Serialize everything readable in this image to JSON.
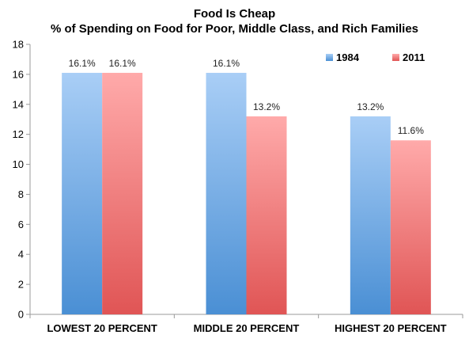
{
  "chart_data": {
    "type": "bar",
    "title": "Food Is Cheap",
    "subtitle": "% of Spending on Food for Poor, Middle Class, and Rich Families",
    "categories": [
      "LOWEST 20 PERCENT",
      "MIDDLE 20 PERCENT",
      "HIGHEST 20 PERCENT"
    ],
    "series": [
      {
        "name": "1984",
        "values": [
          16.1,
          16.1,
          13.2
        ],
        "labels": [
          "16.1%",
          "16.1%",
          "13.2%"
        ],
        "color_light": "#a9cef6",
        "color_dark": "#4a8fd4"
      },
      {
        "name": "2011",
        "values": [
          16.1,
          13.2,
          11.6
        ],
        "labels": [
          "16.1%",
          "13.2%",
          "11.6%"
        ],
        "color_light": "#ffaaaa",
        "color_dark": "#e05555"
      }
    ],
    "xlabel": "",
    "ylabel": "",
    "ylim": [
      0,
      18
    ],
    "yticks": [
      0,
      2,
      4,
      6,
      8,
      10,
      12,
      14,
      16,
      18
    ],
    "grid": false,
    "legend_position": "top-right",
    "axis_color": "#999999"
  }
}
